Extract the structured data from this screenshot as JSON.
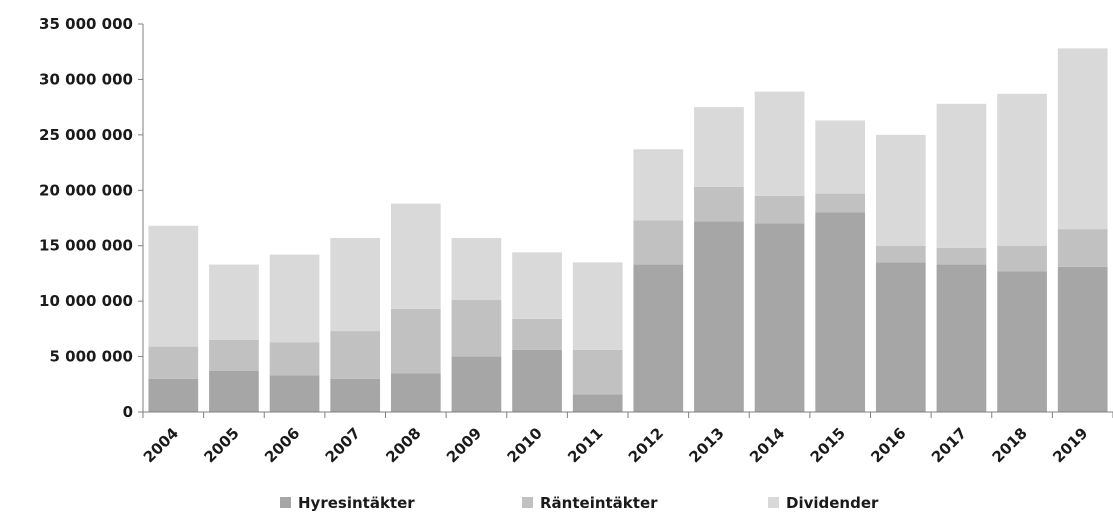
{
  "chart_data": {
    "type": "bar",
    "stacked": true,
    "categories": [
      "2004",
      "2005",
      "2006",
      "2007",
      "2008",
      "2009",
      "2010",
      "2011",
      "2012",
      "2013",
      "2014",
      "2015",
      "2016",
      "2017",
      "2018",
      "2019"
    ],
    "series": [
      {
        "name": "Hyresintäkter",
        "color": "#a6a6a6",
        "values": [
          3000000,
          3700000,
          3300000,
          3000000,
          3500000,
          5000000,
          5600000,
          1600000,
          13300000,
          17200000,
          17000000,
          18000000,
          13500000,
          13300000,
          12700000,
          13100000
        ]
      },
      {
        "name": "Ränteintäkter",
        "color": "#c1c1c1",
        "values": [
          2900000,
          2800000,
          3000000,
          4300000,
          5800000,
          5100000,
          2800000,
          4000000,
          4000000,
          3100000,
          2500000,
          1700000,
          1500000,
          1500000,
          2300000,
          3400000
        ]
      },
      {
        "name": "Dividender",
        "color": "#d9d9d9",
        "values": [
          10900000,
          6800000,
          7900000,
          8400000,
          9500000,
          5600000,
          6000000,
          7900000,
          6400000,
          7200000,
          9400000,
          6600000,
          10000000,
          13000000,
          13700000,
          16300000
        ]
      }
    ],
    "yticks": [
      "0",
      "5 000 000",
      "10 000 000",
      "15 000 000",
      "20 000 000",
      "25 000 000",
      "30 000 000",
      "35 000 000"
    ],
    "ylim": [
      0,
      35000000
    ],
    "ystep": 5000000,
    "grid": false,
    "legend_position": "bottom"
  }
}
